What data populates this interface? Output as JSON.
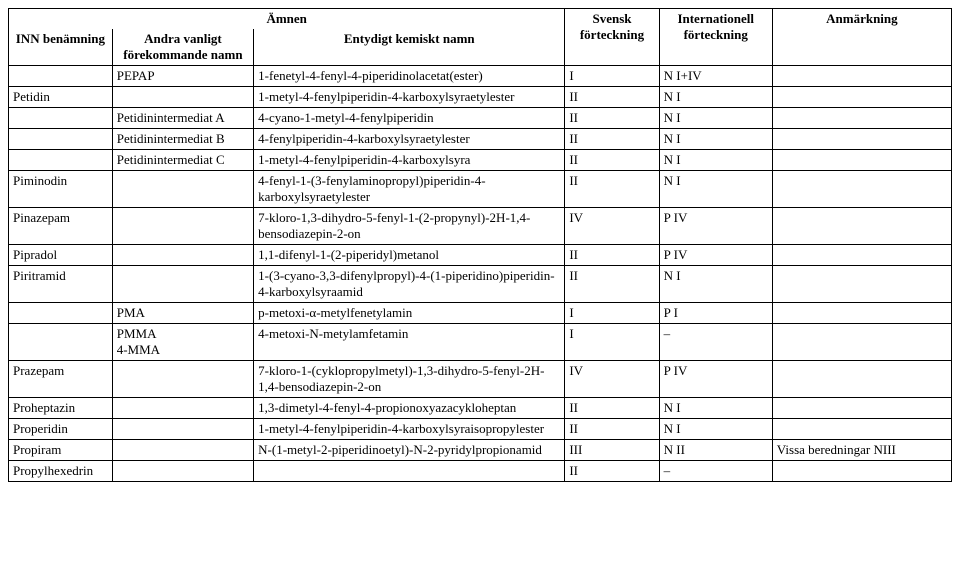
{
  "headers": {
    "topgroup": "Ämnen",
    "inn": "INN benämning",
    "other": "Andra vanligt förekommande namn",
    "chem": "Entydigt kemiskt namn",
    "sv": "Svensk förteckning",
    "int": "Internationell förteckning",
    "anm": "Anmärkning"
  },
  "rows": [
    {
      "inn": "",
      "other": "PEPAP",
      "chem": "1-fenetyl-4-fenyl-4-piperidinolacetat(ester)",
      "sv": "I",
      "int": "N I+IV",
      "anm": ""
    },
    {
      "inn": "Petidin",
      "other": "",
      "chem": "1-metyl-4-fenylpiperidin-4-karboxylsyraetylester",
      "sv": "II",
      "int": "N I",
      "anm": ""
    },
    {
      "inn": "",
      "other": "Petidinintermediat A",
      "chem": "4-cyano-1-metyl-4-fenylpiperidin",
      "sv": "II",
      "int": "N I",
      "anm": ""
    },
    {
      "inn": "",
      "other": "Petidinintermediat B",
      "chem": "4-fenylpiperidin-4-karboxylsyraetylester",
      "sv": "II",
      "int": "N I",
      "anm": ""
    },
    {
      "inn": "",
      "other": "Petidinintermediat C",
      "chem": "1-metyl-4-fenylpiperidin-4-karboxylsyra",
      "sv": "II",
      "int": "N I",
      "anm": ""
    },
    {
      "inn": "Piminodin",
      "other": "",
      "chem": "4-fenyl-1-(3-fenylaminopropyl)piperidin-4-karboxylsyraetylester",
      "sv": "II",
      "int": "N I",
      "anm": ""
    },
    {
      "inn": "Pinazepam",
      "other": "",
      "chem": "7-kloro-1,3-dihydro-5-fenyl-1-(2-propynyl)-2H-1,4-bensodiazepin-2-on",
      "sv": "IV",
      "int": "P IV",
      "anm": ""
    },
    {
      "inn": "Pipradol",
      "other": "",
      "chem": "1,1-difenyl-1-(2-piperidyl)metanol",
      "sv": "II",
      "int": "P IV",
      "anm": ""
    },
    {
      "inn": "Piritramid",
      "other": "",
      "chem": "1-(3-cyano-3,3-difenylpropyl)-4-(1-piperidino)piperidin-4-karboxylsyraamid",
      "sv": "II",
      "int": "N I",
      "anm": ""
    },
    {
      "inn": "",
      "other": "PMA",
      "chem": "p-metoxi-α-metylfenetylamin",
      "sv": "I",
      "int": "P I",
      "anm": ""
    },
    {
      "inn": "",
      "other": "PMMA\n4-MMA",
      "chem": "4-metoxi-N-metylamfetamin",
      "sv": "I",
      "int": "–",
      "anm": ""
    },
    {
      "inn": "Prazepam",
      "other": "",
      "chem": "7-kloro-1-(cyklopropylmetyl)-1,3-dihydro-5-fenyl-2H-1,4-bensodiazepin-2-on",
      "sv": "IV",
      "int": "P IV",
      "anm": ""
    },
    {
      "inn": "Proheptazin",
      "other": "",
      "chem": "1,3-dimetyl-4-fenyl-4-propionoxyazacykloheptan",
      "sv": "II",
      "int": "N I",
      "anm": ""
    },
    {
      "inn": "Properidin",
      "other": "",
      "chem": "1-metyl-4-fenylpiperidin-4-karboxylsyraisopropylester",
      "sv": "II",
      "int": "N I",
      "anm": ""
    },
    {
      "inn": "Propiram",
      "other": "",
      "chem": "N-(1-metyl-2-piperidinoetyl)-N-2-pyridylpropionamid",
      "sv": "III",
      "int": "N II",
      "anm": "Vissa beredningar NIII"
    },
    {
      "inn": "Propylhexedrin",
      "other": "",
      "chem": "",
      "sv": "II",
      "int": "–",
      "anm": ""
    }
  ]
}
